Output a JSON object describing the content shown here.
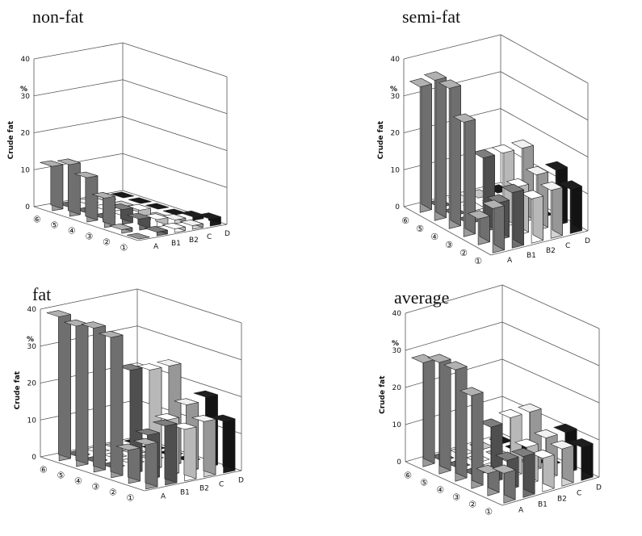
{
  "chart_data": [
    {
      "type": "bar",
      "title": "non-fat",
      "ylabel": "Crude fat",
      "yunit": "%",
      "ylim": [
        0,
        40
      ],
      "yticks": [
        "0",
        "10",
        "20",
        "30",
        "40"
      ],
      "rows": [
        "⑥",
        "⑤",
        "④",
        "③",
        "②",
        "①"
      ],
      "categories": [
        "A",
        "B1",
        "B2",
        "C",
        "D"
      ],
      "values": [
        [
          12,
          0,
          0,
          0,
          0
        ],
        [
          14,
          0,
          0,
          0,
          0
        ],
        [
          12,
          0,
          0,
          0,
          0
        ],
        [
          8,
          4,
          3,
          0,
          0
        ],
        [
          1,
          3,
          2,
          1,
          1
        ],
        [
          0,
          1,
          1,
          1,
          2
        ]
      ]
    },
    {
      "type": "bar",
      "title": "semi-fat",
      "ylabel": "Crude fat",
      "yunit": "%",
      "ylim": [
        0,
        40
      ],
      "yticks": [
        "0",
        "10",
        "20",
        "30",
        "40"
      ],
      "rows": [
        "⑥",
        "⑤",
        "④",
        "③",
        "②",
        "①"
      ],
      "categories": [
        "A",
        "B1",
        "B2",
        "C",
        "D"
      ],
      "values": [
        [
          34,
          0,
          0,
          0,
          0
        ],
        [
          38,
          0,
          0,
          0,
          0
        ],
        [
          38,
          0,
          0,
          0,
          0
        ],
        [
          31,
          20,
          20,
          20,
          0
        ],
        [
          7,
          10,
          13,
          15,
          15
        ],
        [
          12,
          15,
          12,
          13,
          12
        ]
      ]
    },
    {
      "type": "bar",
      "title": "fat",
      "ylabel": "Crude fat",
      "yunit": "%",
      "ylim": [
        0,
        40
      ],
      "yticks": [
        "0",
        "10",
        "20",
        "30",
        "40"
      ],
      "rows": [
        "⑥",
        "⑤",
        "④",
        "③",
        "②",
        "①"
      ],
      "categories": [
        "A",
        "B1",
        "B2",
        "C",
        "D"
      ],
      "values": [
        [
          39,
          0,
          0,
          0,
          0
        ],
        [
          38,
          0,
          0,
          0,
          0
        ],
        [
          39,
          0,
          0,
          0,
          0
        ],
        [
          38,
          28,
          27,
          27,
          0
        ],
        [
          9,
          12,
          15,
          18,
          19
        ],
        [
          12,
          16,
          14,
          15,
          14
        ]
      ]
    },
    {
      "type": "bar",
      "title": "average",
      "ylabel": "Crude fat",
      "yunit": "%",
      "ylim": [
        0,
        40
      ],
      "yticks": [
        "0",
        "10",
        "20",
        "30",
        "40"
      ],
      "rows": [
        "⑥",
        "⑤",
        "④",
        "③",
        "②",
        "①"
      ],
      "categories": [
        "A",
        "B1",
        "B2",
        "C",
        "D"
      ],
      "values": [
        [
          28,
          0,
          0,
          0,
          0
        ],
        [
          30,
          0,
          0,
          0,
          0
        ],
        [
          30,
          0,
          0,
          0,
          0
        ],
        [
          25,
          15,
          16,
          16,
          0
        ],
        [
          6,
          8,
          10,
          11,
          11
        ],
        [
          8,
          11,
          9,
          10,
          9
        ]
      ]
    }
  ],
  "colors": {
    "A": "#9a9a9a",
    "B1": "#6e6e6e",
    "B2": "#ffffff",
    "C": "#d2d2d2",
    "D": "#1a1a1a"
  }
}
